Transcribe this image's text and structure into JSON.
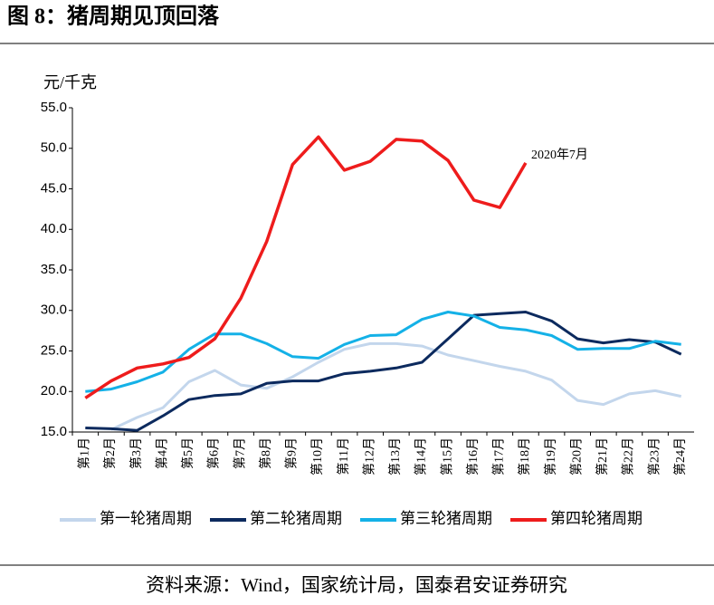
{
  "chart_data": {
    "type": "line",
    "title": "图 8：猪周期见顶回落",
    "y_label": "元/千克",
    "source": "资料来源：Wind，国家统计局，国泰君安证券研究",
    "annotation": "2020年7月",
    "categories": [
      "第1月",
      "第2月",
      "第3月",
      "第4月",
      "第5月",
      "第6月",
      "第7月",
      "第8月",
      "第9月",
      "第10月",
      "第11月",
      "第12月",
      "第13月",
      "第14月",
      "第15月",
      "第16月",
      "第17月",
      "第18月",
      "第19月",
      "第20月",
      "第21月",
      "第22月",
      "第23月",
      "第24月"
    ],
    "series": [
      {
        "name": "第一轮猪周期",
        "color": "#c3d6ec",
        "values": [
          null,
          15.3,
          16.8,
          18.0,
          21.2,
          22.6,
          20.8,
          20.4,
          21.8,
          23.6,
          25.2,
          25.9,
          25.9,
          25.6,
          24.5,
          23.8,
          23.1,
          22.5,
          21.4,
          18.9,
          18.4,
          19.7,
          20.1,
          19.4
        ]
      },
      {
        "name": "第二轮猪周期",
        "color": "#0c2a5e",
        "values": [
          15.5,
          15.4,
          15.2,
          17.0,
          19.0,
          19.5,
          19.7,
          21.0,
          21.3,
          21.3,
          22.2,
          22.5,
          22.9,
          23.6,
          26.5,
          29.4,
          29.6,
          29.8,
          28.7,
          26.5,
          26.0,
          26.4,
          26.1,
          24.6
        ]
      },
      {
        "name": "第三轮猪周期",
        "color": "#14b1e7",
        "values": [
          20.0,
          20.3,
          21.2,
          22.4,
          25.2,
          27.1,
          27.1,
          25.9,
          24.3,
          24.1,
          25.8,
          26.9,
          27.0,
          28.9,
          29.8,
          29.3,
          27.9,
          27.6,
          26.9,
          25.2,
          25.3,
          25.3,
          26.2,
          25.8
        ]
      },
      {
        "name": "第四轮猪周期",
        "color": "#ee1c1c",
        "values": [
          19.2,
          21.3,
          22.9,
          23.4,
          24.2,
          26.5,
          31.5,
          38.5,
          48.0,
          51.4,
          47.3,
          48.4,
          51.1,
          50.9,
          48.5,
          43.6,
          42.7,
          48.2,
          null,
          null,
          null,
          null,
          null,
          null
        ]
      }
    ],
    "ylim": [
      15,
      55
    ],
    "yticks": [
      {
        "value": 15,
        "label": "15.0"
      },
      {
        "value": 20,
        "label": "20.0"
      },
      {
        "value": 25,
        "label": "25.0"
      },
      {
        "value": 30,
        "label": "30.0"
      },
      {
        "value": 35,
        "label": "35.0"
      },
      {
        "value": 40,
        "label": "40.0"
      },
      {
        "value": 45,
        "label": "45.0"
      },
      {
        "value": 50,
        "label": "50.0"
      },
      {
        "value": 55,
        "label": "55.0"
      }
    ],
    "grid": false,
    "legend": "bottom"
  }
}
